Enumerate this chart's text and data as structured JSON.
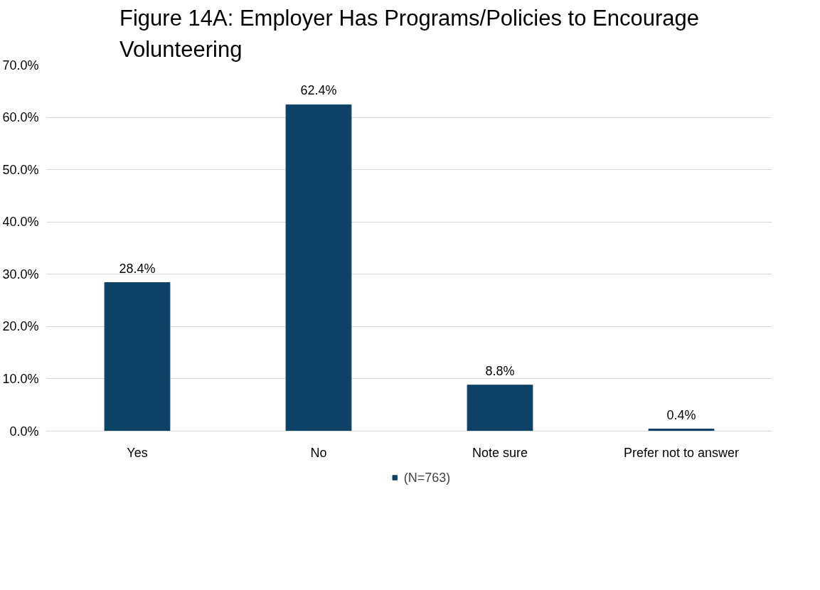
{
  "chart_data": {
    "type": "bar",
    "title": "Figure 14A: Employer Has Programs/Policies to Encourage Volunteering",
    "categories": [
      "Yes",
      "No",
      "Note sure",
      "Prefer not to answer"
    ],
    "series": [
      {
        "name": "(N=763)",
        "color": "#0d4166",
        "values": [
          28.4,
          62.4,
          8.8,
          0.4
        ],
        "value_labels": [
          "28.4%",
          "62.4%",
          "8.8%",
          "0.4%"
        ]
      }
    ],
    "ylim": [
      0,
      70
    ],
    "yticks": [
      {
        "value": 0,
        "label": "0.0%"
      },
      {
        "value": 10,
        "label": "10.0%"
      },
      {
        "value": 20,
        "label": "20.0%"
      },
      {
        "value": 30,
        "label": "30.0%"
      },
      {
        "value": 40,
        "label": "40.0%"
      },
      {
        "value": 50,
        "label": "50.0%"
      },
      {
        "value": 60,
        "label": "60.0%"
      },
      {
        "value": 70,
        "label": "70.0%"
      }
    ],
    "grid": "y",
    "legend": "bottom"
  }
}
